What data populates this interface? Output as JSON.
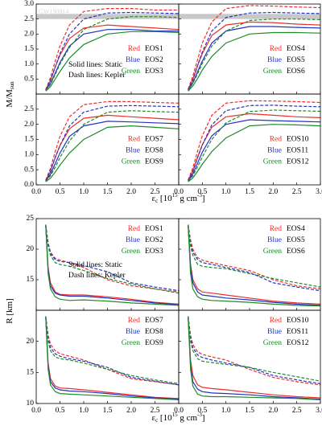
{
  "chart_data": [
    {
      "type": "line",
      "ylabel": "M/M",
      "ylabel_sub": "sun",
      "xlabel": [
        "ε",
        "c",
        " [10",
        "15",
        " g cm",
        "-3",
        "]"
      ],
      "x": [
        0.2,
        0.3,
        0.4,
        0.5,
        0.7,
        1.0,
        1.5,
        2.0,
        2.5,
        3.0
      ],
      "xlim": [
        0,
        3
      ],
      "xticks": [
        {
          "value": 0,
          "label": "0.0"
        },
        0.5,
        {
          "value": 1,
          "label": "1.0"
        },
        1.5,
        {
          "value": 2,
          "label": "2.0"
        },
        2.5,
        {
          "value": 3,
          "label": "3.0"
        }
      ],
      "ylim": [
        0,
        3
      ],
      "yticks": [
        {
          "value": 0,
          "label": "0.0"
        },
        0.5,
        {
          "value": 1,
          "label": "1.0"
        },
        1.5,
        {
          "value": 2,
          "label": "2.0"
        },
        2.5,
        {
          "value": 3,
          "label": "3.0"
        }
      ],
      "band": {
        "label": "GW190814",
        "range": [
          2.5,
          2.67
        ],
        "color": "#c8c8c8"
      },
      "annotations": [
        "Solid lines: Static",
        "Dash lines: Kepler"
      ],
      "panels": [
        {
          "legend_loc": "center right",
          "series": [
            {
              "name": "EOS1",
              "color_label": "Red",
              "color": "#e8302c",
              "static": [
                0.15,
                0.45,
                0.9,
                1.3,
                1.85,
                2.2,
                2.3,
                2.25,
                2.2,
                2.15
              ],
              "kepler": [
                0.15,
                0.55,
                1.1,
                1.6,
                2.3,
                2.75,
                2.85,
                2.85,
                2.8,
                2.8
              ]
            },
            {
              "name": "EOS2",
              "color_label": "Blue",
              "color": "#2233c4",
              "static": [
                0.12,
                0.35,
                0.7,
                1.05,
                1.6,
                2.0,
                2.15,
                2.15,
                2.1,
                2.1
              ],
              "kepler": [
                0.13,
                0.45,
                0.9,
                1.35,
                2.0,
                2.5,
                2.7,
                2.72,
                2.7,
                2.68
              ]
            },
            {
              "name": "EOS3",
              "color_label": "Green",
              "color": "#1f8a2a",
              "static": [
                0.1,
                0.25,
                0.5,
                0.75,
                1.2,
                1.65,
                2.0,
                2.08,
                2.08,
                2.05
              ],
              "kepler": [
                0.12,
                0.32,
                0.65,
                1.0,
                1.55,
                2.15,
                2.5,
                2.58,
                2.58,
                2.55
              ]
            }
          ]
        },
        {
          "legend_loc": "center right",
          "series": [
            {
              "name": "EOS4",
              "color_label": "Red",
              "color": "#e8302c",
              "static": [
                0.15,
                0.5,
                0.95,
                1.35,
                1.95,
                2.3,
                2.4,
                2.38,
                2.33,
                2.3
              ],
              "kepler": [
                0.16,
                0.6,
                1.15,
                1.7,
                2.4,
                2.85,
                2.95,
                2.93,
                2.9,
                2.88
              ]
            },
            {
              "name": "EOS5",
              "color_label": "Blue",
              "color": "#2233c4",
              "static": [
                0.12,
                0.38,
                0.75,
                1.1,
                1.7,
                2.1,
                2.25,
                2.25,
                2.22,
                2.2
              ],
              "kepler": [
                0.13,
                0.47,
                0.95,
                1.4,
                2.1,
                2.55,
                2.7,
                2.72,
                2.7,
                2.68
              ]
            },
            {
              "name": "EOS6",
              "color_label": "Green",
              "color": "#1f8a2a",
              "static": [
                0.1,
                0.27,
                0.52,
                0.8,
                1.25,
                1.7,
                2.0,
                2.05,
                2.05,
                2.03
              ],
              "kepler": [
                0.12,
                0.35,
                0.68,
                1.02,
                1.6,
                2.1,
                2.45,
                2.5,
                2.5,
                2.48
              ]
            }
          ]
        },
        {
          "legend_loc": "center right",
          "series": [
            {
              "name": "EOS7",
              "color_label": "Red",
              "color": "#e8302c",
              "static": [
                0.15,
                0.45,
                0.9,
                1.3,
                1.85,
                2.2,
                2.3,
                2.25,
                2.2,
                2.15
              ],
              "kepler": [
                0.16,
                0.55,
                1.1,
                1.6,
                2.25,
                2.65,
                2.75,
                2.75,
                2.72,
                2.7
              ]
            },
            {
              "name": "EOS8",
              "color_label": "Blue",
              "color": "#2233c4",
              "static": [
                0.12,
                0.35,
                0.7,
                1.05,
                1.6,
                1.95,
                2.1,
                2.08,
                2.05,
                2.02
              ],
              "kepler": [
                0.13,
                0.45,
                0.9,
                1.3,
                1.95,
                2.4,
                2.6,
                2.62,
                2.6,
                2.58
              ]
            },
            {
              "name": "EOS9",
              "color_label": "Green",
              "color": "#1f8a2a",
              "static": [
                0.1,
                0.22,
                0.42,
                0.65,
                1.05,
                1.5,
                1.9,
                1.95,
                1.9,
                1.85
              ],
              "kepler": [
                0.12,
                0.3,
                0.58,
                0.9,
                1.45,
                2.0,
                2.4,
                2.45,
                2.42,
                2.4
              ]
            }
          ]
        },
        {
          "legend_loc": "center right",
          "series": [
            {
              "name": "EOS10",
              "color_label": "Red",
              "color": "#e8302c",
              "static": [
                0.15,
                0.47,
                0.92,
                1.32,
                1.9,
                2.25,
                2.35,
                2.3,
                2.25,
                2.22
              ],
              "kepler": [
                0.16,
                0.57,
                1.12,
                1.62,
                2.3,
                2.7,
                2.78,
                2.77,
                2.75,
                2.72
              ]
            },
            {
              "name": "EOS11",
              "color_label": "Blue",
              "color": "#2233c4",
              "static": [
                0.12,
                0.36,
                0.72,
                1.08,
                1.62,
                2.0,
                2.15,
                2.12,
                2.1,
                2.08
              ],
              "kepler": [
                0.13,
                0.45,
                0.9,
                1.32,
                1.98,
                2.45,
                2.62,
                2.63,
                2.6,
                2.58
              ]
            },
            {
              "name": "EOS12",
              "color_label": "Green",
              "color": "#1f8a2a",
              "static": [
                0.1,
                0.23,
                0.45,
                0.68,
                1.1,
                1.55,
                1.95,
                2.0,
                1.98,
                1.95
              ],
              "kepler": [
                0.12,
                0.3,
                0.6,
                0.92,
                1.5,
                2.05,
                2.42,
                2.47,
                2.45,
                2.43
              ]
            }
          ]
        }
      ]
    },
    {
      "type": "line",
      "ylabel": "R [km]",
      "xlabel": [
        "ε",
        "c",
        " [10",
        "15",
        " g cm",
        "-3",
        "]"
      ],
      "x": [
        0.2,
        0.25,
        0.3,
        0.4,
        0.5,
        0.7,
        1.0,
        1.5,
        2.0,
        2.5,
        3.0
      ],
      "xlim": [
        0,
        3
      ],
      "xticks": [
        {
          "value": 0,
          "label": "0.0"
        },
        0.5,
        {
          "value": 1,
          "label": "1.0"
        },
        1.5,
        {
          "value": 2,
          "label": "2.0"
        },
        2.5,
        {
          "value": 3,
          "label": "3.0"
        }
      ],
      "ylim": [
        10,
        25
      ],
      "yticks": [
        10,
        15,
        20,
        25
      ],
      "annotations": [
        "Solid lines: Static",
        "Dash lines: Kepler"
      ],
      "panels": [
        {
          "legend_loc": "upper right",
          "series": [
            {
              "name": "EOS1",
              "color_label": "Red",
              "color": "#e8302c",
              "static": [
                24,
                17,
                14.5,
                13,
                12.6,
                12.5,
                12.5,
                12.2,
                11.8,
                11.3,
                11.0
              ],
              "kepler": [
                24,
                21,
                19.5,
                18.5,
                18.2,
                17.8,
                17,
                15,
                14,
                13.5,
                13.0
              ]
            },
            {
              "name": "EOS2",
              "color_label": "Blue",
              "color": "#2233c4",
              "static": [
                24,
                16.5,
                14,
                12.8,
                12.5,
                12.3,
                12.3,
                12,
                11.6,
                11.2,
                10.9
              ],
              "kepler": [
                24,
                21,
                19.3,
                18.3,
                18,
                17.8,
                17.3,
                16.3,
                14.5,
                13.8,
                13.2
              ]
            },
            {
              "name": "EOS3",
              "color_label": "Green",
              "color": "#1f8a2a",
              "static": [
                24,
                16,
                13.5,
                12.2,
                11.8,
                11.6,
                11.7,
                11.5,
                11.2,
                11,
                10.8
              ],
              "kepler": [
                24,
                20.5,
                19,
                17.8,
                17.5,
                17.2,
                16.5,
                15.2,
                14.3,
                13.5,
                12.8
              ]
            }
          ]
        },
        {
          "legend_loc": "upper right",
          "series": [
            {
              "name": "EOS4",
              "color_label": "Red",
              "color": "#e8302c",
              "static": [
                24,
                17.5,
                15,
                13.5,
                13,
                12.8,
                12.5,
                12,
                11.5,
                11.2,
                11
              ],
              "kepler": [
                24,
                21.5,
                20,
                18.6,
                18.2,
                17.8,
                17.3,
                16.5,
                15,
                14,
                13.5
              ]
            },
            {
              "name": "EOS5",
              "color_label": "Blue",
              "color": "#2233c4",
              "static": [
                24,
                17,
                14.5,
                13,
                12.5,
                12.3,
                12,
                11.7,
                11.3,
                11,
                10.8
              ],
              "kepler": [
                24,
                21,
                19.5,
                18.3,
                17.8,
                17.5,
                17,
                16.2,
                14.5,
                13.8,
                13.2
              ]
            },
            {
              "name": "EOS6",
              "color_label": "Green",
              "color": "#1f8a2a",
              "static": [
                24,
                16,
                13.5,
                12.2,
                11.8,
                11.6,
                11.5,
                11.3,
                11,
                10.8,
                10.7
              ],
              "kepler": [
                24,
                20.5,
                19,
                17.5,
                17.2,
                17,
                16.8,
                16,
                15.2,
                14.5,
                13.8
              ]
            }
          ]
        },
        {
          "legend_loc": "upper right",
          "series": [
            {
              "name": "EOS7",
              "color_label": "Red",
              "color": "#e8302c",
              "static": [
                24,
                16.5,
                14,
                12.8,
                12.5,
                12.4,
                12.2,
                11.8,
                11.4,
                11,
                10.8
              ],
              "kepler": [
                24,
                21,
                19.5,
                18.5,
                18,
                17.6,
                17,
                15.5,
                14,
                13.5,
                13
              ]
            },
            {
              "name": "EOS8",
              "color_label": "Blue",
              "color": "#2233c4",
              "static": [
                24,
                16,
                13.5,
                12.5,
                12.2,
                12,
                11.9,
                11.6,
                11.2,
                10.9,
                10.7
              ],
              "kepler": [
                24,
                20.5,
                19,
                18,
                17.6,
                17.2,
                16.8,
                15.8,
                14.2,
                13.6,
                13
              ]
            },
            {
              "name": "EOS9",
              "color_label": "Green",
              "color": "#1f8a2a",
              "static": [
                24,
                15.5,
                13,
                11.9,
                11.6,
                11.5,
                11.4,
                11.2,
                11,
                10.8,
                10.6
              ],
              "kepler": [
                24,
                20,
                18.5,
                17.5,
                17.2,
                17,
                16.5,
                15.5,
                14.5,
                13.8,
                13.2
              ]
            }
          ]
        },
        {
          "legend_loc": "upper right",
          "series": [
            {
              "name": "EOS10",
              "color_label": "Red",
              "color": "#e8302c",
              "static": [
                24,
                17,
                14.5,
                13,
                12.6,
                12.4,
                12.2,
                11.8,
                11.4,
                11.1,
                10.9
              ],
              "kepler": [
                24,
                21,
                19.5,
                18.3,
                17.9,
                17.5,
                17,
                15.5,
                14.2,
                13.5,
                13
              ]
            },
            {
              "name": "EOS11",
              "color_label": "Blue",
              "color": "#2233c4",
              "static": [
                24,
                16,
                13.5,
                12.3,
                11.9,
                11.7,
                11.6,
                11.4,
                11.1,
                10.9,
                10.7
              ],
              "kepler": [
                24,
                20.5,
                19,
                17.8,
                17.4,
                17,
                16.5,
                15.8,
                14.5,
                13.8,
                13.2
              ]
            },
            {
              "name": "EOS12",
              "color_label": "Green",
              "color": "#1f8a2a",
              "static": [
                24,
                15.5,
                12.8,
                11.5,
                11.2,
                11.1,
                11.1,
                11,
                10.9,
                10.8,
                10.6
              ],
              "kepler": [
                24,
                20,
                18.5,
                17.2,
                16.8,
                16.6,
                16.3,
                15.8,
                15,
                14.3,
                13.6
              ]
            }
          ]
        }
      ]
    }
  ]
}
